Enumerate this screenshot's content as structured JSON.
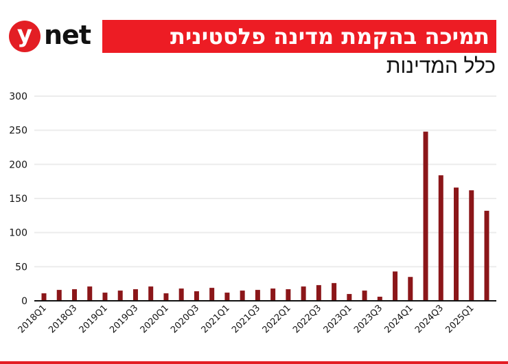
{
  "header": {
    "logo_letter": "y",
    "logo_text": "net",
    "title": "תמיכה בהקמת מדינה פלסטינית",
    "subtitle": "כלל המדינות"
  },
  "colors": {
    "brand_red": "#ed1c24",
    "bar": "#8b1619",
    "gridline": "#ececec",
    "axis": "#111111"
  },
  "chart_data": {
    "type": "bar",
    "title": "תמיכה בהקמת מדינה פלסטינית",
    "subtitle": "כלל המדינות",
    "xlabel": "",
    "ylabel": "",
    "ylim": [
      0,
      300
    ],
    "yticks": [
      0,
      50,
      100,
      150,
      200,
      250,
      300
    ],
    "grid": true,
    "legend": null,
    "categories": [
      "2018Q1",
      "2018Q2",
      "2018Q3",
      "2018Q4",
      "2019Q1",
      "2019Q2",
      "2019Q3",
      "2019Q4",
      "2020Q1",
      "2020Q2",
      "2020Q3",
      "2020Q4",
      "2021Q1",
      "2021Q2",
      "2021Q3",
      "2021Q4",
      "2022Q1",
      "2022Q2",
      "2022Q3",
      "2022Q4",
      "2023Q1",
      "2023Q2",
      "2023Q3",
      "2023Q4",
      "2024Q1",
      "2024Q2",
      "2024Q3",
      "2024Q4",
      "2025Q1",
      "2025Q2"
    ],
    "x_tick_labels": [
      "2018Q1",
      "2018Q3",
      "2019Q1",
      "2019Q3",
      "2020Q1",
      "2020Q3",
      "2021Q1",
      "2021Q3",
      "2022Q1",
      "2022Q3",
      "2023Q1",
      "2023Q3",
      "2024Q1",
      "2024Q3",
      "2025Q1"
    ],
    "values": [
      11,
      16,
      17,
      21,
      12,
      15,
      17,
      21,
      11,
      18,
      14,
      19,
      12,
      15,
      16,
      18,
      17,
      21,
      23,
      26,
      10,
      15,
      6,
      43,
      35,
      248,
      184,
      166,
      162,
      132
    ]
  }
}
